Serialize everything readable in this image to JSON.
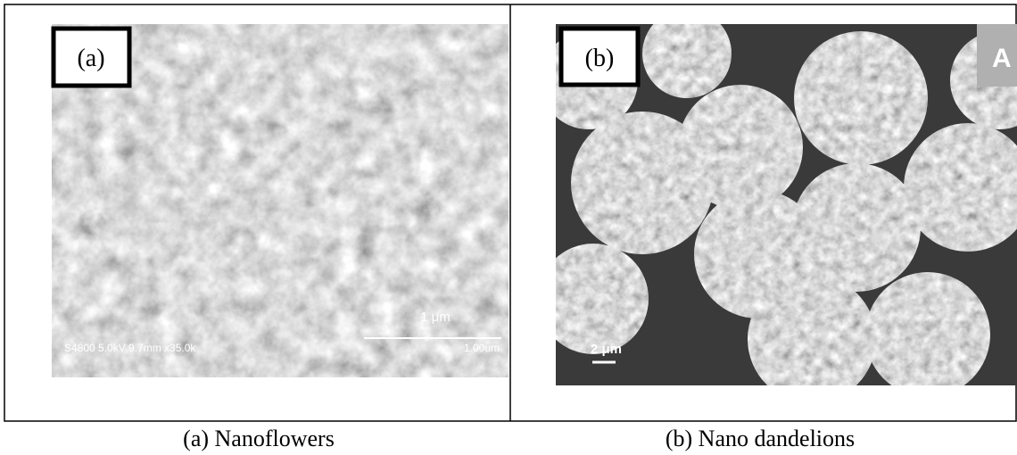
{
  "figure": {
    "panels": [
      {
        "label": "(a)",
        "caption": "(a) Nanoflowers",
        "scale_bar": "1 μm",
        "info": "S4800 5.0kV 9.7mm x35.0k",
        "scale_text": "1.00um"
      },
      {
        "label": "(b)",
        "caption": "(b) Nano dandelions",
        "corner_text": "A",
        "scale_bar": "2 μm"
      }
    ]
  }
}
